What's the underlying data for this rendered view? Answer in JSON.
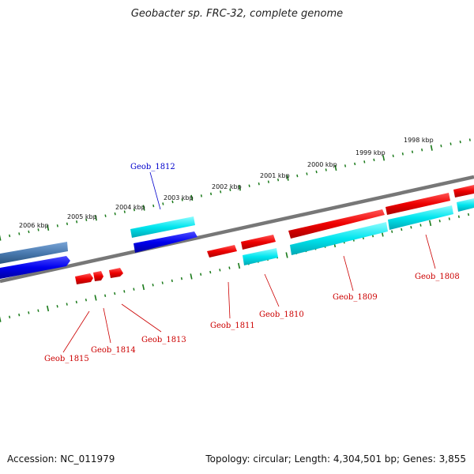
{
  "title": "Geobacter sp. FRC-32, complete genome",
  "accession": "Accession: NC_011979",
  "summary": "Topology: circular; Length: 4,304,501 bp; Genes: 3,855",
  "colors": {
    "backbone": "#7f7f7f",
    "tick": "#1a7a1a",
    "gene_red": "#ee0000",
    "gene_cyan": "#00e5ee",
    "gene_blue": "#0000ee",
    "gene_steel": "#4a7ab0",
    "label_red": "#cc0000",
    "label_blue": "#0000cc"
  },
  "kbp_labels": [
    "1998 kbp",
    "1999 kbp",
    "2000 kbp",
    "2001 kbp",
    "2002 kbp",
    "2003 kbp",
    "2004 kbp",
    "2005 kbp",
    "2006 kbp"
  ],
  "genes": [
    {
      "name": "Geob_1808",
      "color": "red"
    },
    {
      "name": "Geob_1809",
      "color": "red"
    },
    {
      "name": "Geob_1810",
      "color": "red"
    },
    {
      "name": "Geob_1811",
      "color": "red"
    },
    {
      "name": "Geob_1812",
      "color": "blue"
    },
    {
      "name": "Geob_1813",
      "color": "red"
    },
    {
      "name": "Geob_1814",
      "color": "red"
    },
    {
      "name": "Geob_1815",
      "color": "red"
    }
  ]
}
